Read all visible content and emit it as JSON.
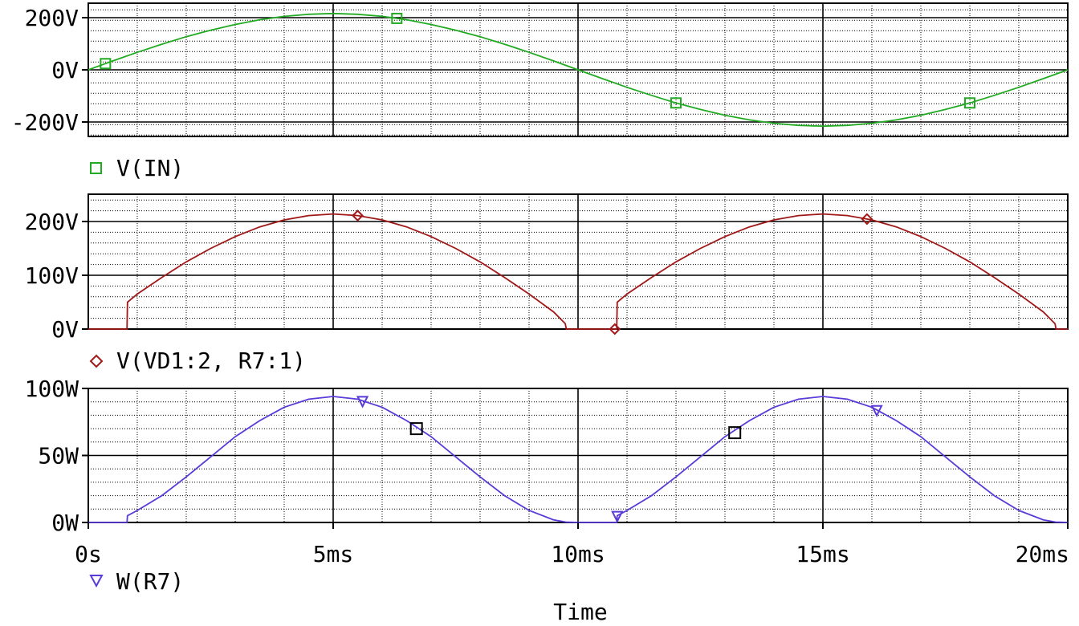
{
  "chart_data": {
    "type": "line",
    "xlabel": "Time",
    "x_unit": "ms",
    "xlim": [
      0,
      20
    ],
    "x_ticks": [
      0,
      5,
      10,
      15,
      20
    ],
    "x_tick_labels": [
      "0s",
      "5ms",
      "10ms",
      "15ms",
      "20ms"
    ],
    "grid": true,
    "panels": [
      {
        "id": "panel-vin",
        "ylim": [
          -250,
          250
        ],
        "y_ticks": [
          200,
          0,
          -200
        ],
        "y_tick_labels": [
          "200V",
          "0V",
          "-200V"
        ],
        "series": [
          {
            "name": "V(IN)",
            "color": "#22aa22",
            "marker": "square",
            "x": [
              0,
              0.5,
              1,
              1.5,
              2,
              2.5,
              3,
              3.5,
              4,
              4.5,
              5,
              5.5,
              6,
              6.5,
              7,
              7.5,
              8,
              8.5,
              9,
              9.5,
              10,
              10.5,
              11,
              11.5,
              12,
              12.5,
              13,
              13.5,
              14,
              14.5,
              15,
              15.5,
              16,
              16.5,
              17,
              17.5,
              18,
              18.5,
              19,
              19.5,
              20
            ],
            "y": [
              0,
              34,
              67,
              98,
              127,
              152,
              174,
              192,
              205,
              213,
              216,
              213,
              205,
              192,
              174,
              152,
              127,
              98,
              67,
              34,
              0,
              -34,
              -67,
              -98,
              -127,
              -152,
              -174,
              -192,
              -205,
              -213,
              -216,
              -213,
              -205,
              -192,
              -174,
              -152,
              -127,
              -98,
              -67,
              -34,
              0
            ],
            "marker_x": [
              0.35,
              6.3,
              12.0,
              18.0
            ]
          }
        ]
      },
      {
        "id": "panel-vd1",
        "ylim": [
          0,
          250
        ],
        "y_ticks": [
          200,
          100,
          0
        ],
        "y_tick_labels": [
          "200V",
          "100V",
          "0V"
        ],
        "series": [
          {
            "name": "V(VD1:2, R7:1)",
            "color": "#a01818",
            "marker": "diamond",
            "x": [
              0,
              0.79,
              0.8,
              1,
              1.5,
              2,
              2.5,
              3,
              3.5,
              4,
              4.5,
              5,
              5.5,
              6,
              6.5,
              7,
              7.5,
              8,
              8.5,
              9,
              9.5,
              9.74,
              9.76,
              10,
              10.79,
              10.8,
              11,
              11.5,
              12,
              12.5,
              13,
              13.5,
              14,
              14.5,
              15,
              15.5,
              16,
              16.5,
              17,
              17.5,
              18,
              18.5,
              19,
              19.5,
              19.74,
              19.76,
              20
            ],
            "y": [
              0,
              0,
              50,
              65,
              96,
              125,
              150,
              172,
              190,
              203,
              211,
              214,
              211,
              203,
              190,
              172,
              150,
              125,
              96,
              65,
              32,
              10,
              0,
              0,
              0,
              50,
              65,
              96,
              125,
              150,
              172,
              190,
              203,
              211,
              214,
              211,
              203,
              190,
              172,
              150,
              125,
              96,
              65,
              32,
              10,
              0,
              0
            ],
            "marker_x": [
              5.5,
              10.75,
              15.9
            ]
          }
        ]
      },
      {
        "id": "panel-wr7",
        "ylim": [
          0,
          100
        ],
        "y_ticks": [
          100,
          50,
          0
        ],
        "y_tick_labels": [
          "100W",
          "50W",
          "0W"
        ],
        "series": [
          {
            "name": "W(R7)",
            "color": "#5a3ad8",
            "marker": "triangle-down",
            "x": [
              0,
              0.79,
              0.8,
              1,
              1.5,
              2,
              2.5,
              3,
              3.5,
              4,
              4.5,
              5,
              5.5,
              6,
              6.5,
              7,
              7.5,
              8,
              8.5,
              9,
              9.5,
              9.75,
              10,
              10.79,
              10.8,
              11,
              11.5,
              12,
              12.5,
              13,
              13.5,
              14,
              14.5,
              15,
              15.5,
              16,
              16.5,
              17,
              17.5,
              18,
              18.5,
              19,
              19.5,
              19.75,
              20
            ],
            "y": [
              0,
              0,
              5,
              9,
              20,
              34,
              49,
              64,
              76,
              86,
              92,
              94,
              92,
              86,
              76,
              64,
              49,
              34,
              20,
              9,
              2,
              0.3,
              0,
              0,
              5,
              9,
              20,
              34,
              49,
              64,
              76,
              86,
              92,
              94,
              92,
              86,
              76,
              64,
              49,
              34,
              20,
              9,
              2,
              0.3,
              0
            ],
            "marker_x": [
              5.6,
              10.8,
              16.1
            ]
          }
        ],
        "cursor_markers": [
          {
            "x": 6.7,
            "y": 70
          },
          {
            "x": 13.2,
            "y": 67
          }
        ]
      }
    ]
  }
}
